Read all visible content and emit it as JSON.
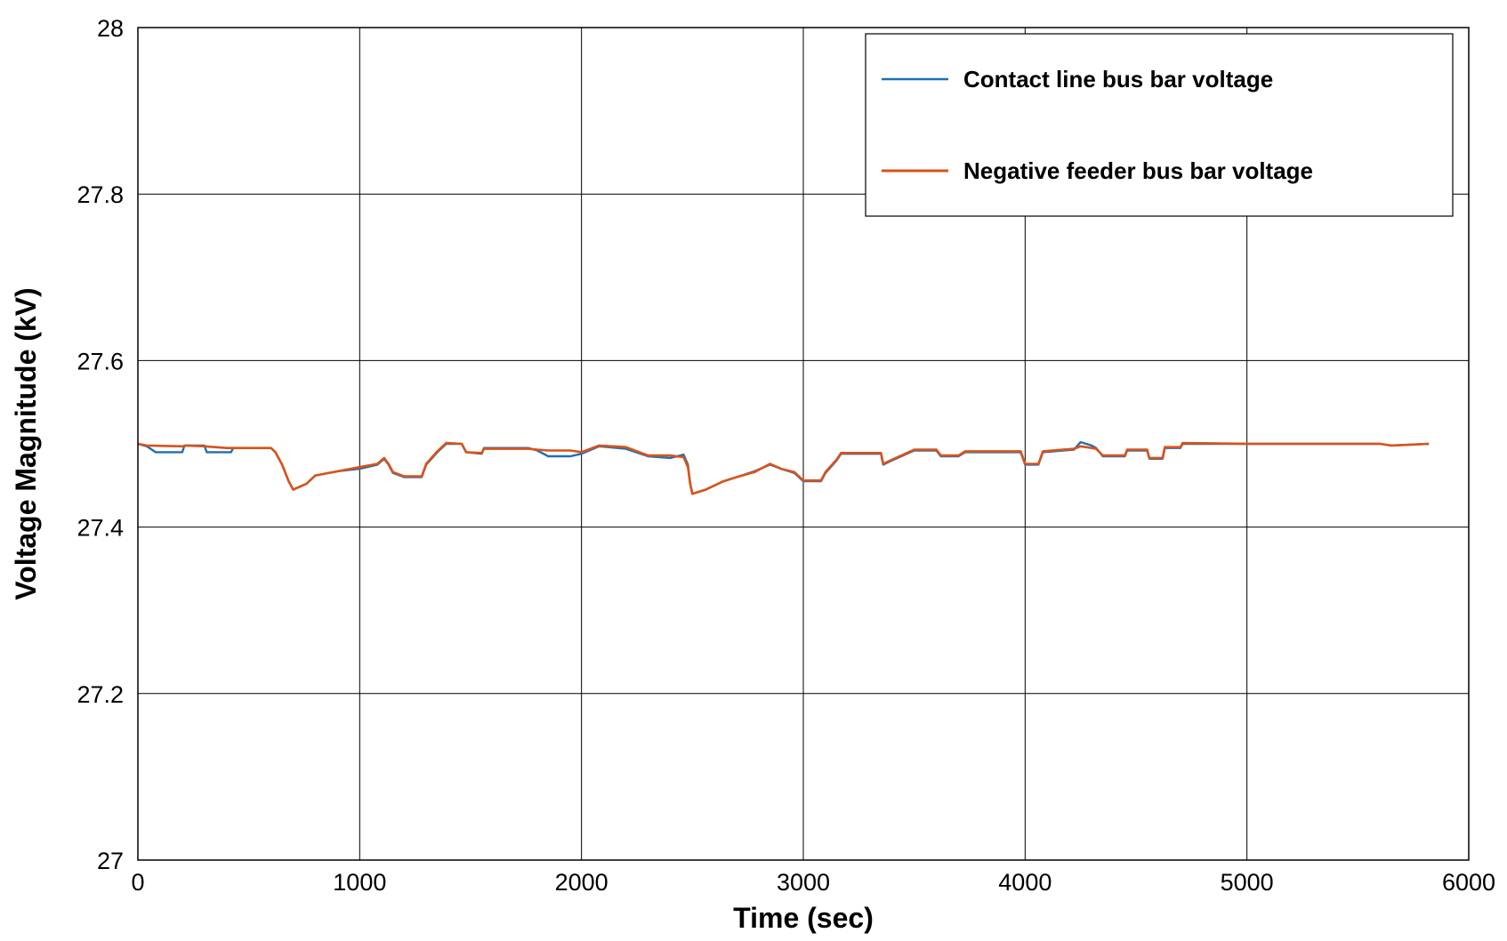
{
  "chart_data": {
    "type": "line",
    "title": "",
    "xlabel": "Time (sec)",
    "ylabel": "Voltage Magnitude (kV)",
    "xlim": [
      0,
      6000
    ],
    "ylim": [
      27,
      28
    ],
    "xticks": [
      0,
      1000,
      2000,
      3000,
      4000,
      5000,
      6000
    ],
    "xtick_labels": [
      "0",
      "1000",
      "2000",
      "3000",
      "4000",
      "5000",
      "6000"
    ],
    "yticks": [
      27,
      27.2,
      27.4,
      27.6,
      27.8,
      28
    ],
    "ytick_labels": [
      "27",
      "27.2",
      "27.4",
      "27.6",
      "27.8",
      "28"
    ],
    "grid": true,
    "legend_position": "top-right",
    "series": [
      {
        "name": "Contact line bus bar voltage",
        "color": "#1f6fb5",
        "points": [
          [
            0,
            27.5
          ],
          [
            40,
            27.497
          ],
          [
            80,
            27.49
          ],
          [
            200,
            27.49
          ],
          [
            210,
            27.498
          ],
          [
            300,
            27.498
          ],
          [
            310,
            27.49
          ],
          [
            420,
            27.49
          ],
          [
            430,
            27.495
          ],
          [
            600,
            27.495
          ],
          [
            620,
            27.49
          ],
          [
            650,
            27.475
          ],
          [
            680,
            27.455
          ],
          [
            700,
            27.445
          ],
          [
            760,
            27.452
          ],
          [
            800,
            27.462
          ],
          [
            900,
            27.467
          ],
          [
            1000,
            27.47
          ],
          [
            1080,
            27.475
          ],
          [
            1110,
            27.482
          ],
          [
            1130,
            27.475
          ],
          [
            1150,
            27.465
          ],
          [
            1200,
            27.46
          ],
          [
            1280,
            27.46
          ],
          [
            1300,
            27.475
          ],
          [
            1350,
            27.49
          ],
          [
            1390,
            27.5
          ],
          [
            1460,
            27.5
          ],
          [
            1480,
            27.49
          ],
          [
            1550,
            27.488
          ],
          [
            1560,
            27.495
          ],
          [
            1760,
            27.495
          ],
          [
            1800,
            27.492
          ],
          [
            1850,
            27.485
          ],
          [
            1950,
            27.485
          ],
          [
            2000,
            27.488
          ],
          [
            2080,
            27.497
          ],
          [
            2200,
            27.494
          ],
          [
            2300,
            27.485
          ],
          [
            2400,
            27.483
          ],
          [
            2460,
            27.487
          ],
          [
            2480,
            27.475
          ],
          [
            2490,
            27.452
          ],
          [
            2500,
            27.44
          ],
          [
            2560,
            27.445
          ],
          [
            2640,
            27.455
          ],
          [
            2700,
            27.46
          ],
          [
            2780,
            27.467
          ],
          [
            2850,
            27.475
          ],
          [
            2900,
            27.47
          ],
          [
            2960,
            27.465
          ],
          [
            3000,
            27.455
          ],
          [
            3080,
            27.455
          ],
          [
            3100,
            27.465
          ],
          [
            3150,
            27.48
          ],
          [
            3170,
            27.488
          ],
          [
            3350,
            27.488
          ],
          [
            3360,
            27.475
          ],
          [
            3400,
            27.48
          ],
          [
            3500,
            27.492
          ],
          [
            3600,
            27.492
          ],
          [
            3620,
            27.485
          ],
          [
            3700,
            27.485
          ],
          [
            3730,
            27.49
          ],
          [
            3980,
            27.49
          ],
          [
            4000,
            27.475
          ],
          [
            4060,
            27.475
          ],
          [
            4080,
            27.49
          ],
          [
            4220,
            27.493
          ],
          [
            4250,
            27.502
          ],
          [
            4300,
            27.498
          ],
          [
            4320,
            27.495
          ],
          [
            4350,
            27.485
          ],
          [
            4450,
            27.485
          ],
          [
            4460,
            27.492
          ],
          [
            4550,
            27.492
          ],
          [
            4560,
            27.482
          ],
          [
            4620,
            27.482
          ],
          [
            4630,
            27.495
          ],
          [
            4700,
            27.495
          ],
          [
            4710,
            27.5
          ],
          [
            5000,
            27.5
          ],
          [
            5600,
            27.5
          ],
          [
            5650,
            27.498
          ],
          [
            5820,
            27.5
          ]
        ]
      },
      {
        "name": "Negative feeder bus bar voltage",
        "color": "#d95319",
        "points": [
          [
            0,
            27.5
          ],
          [
            40,
            27.498
          ],
          [
            200,
            27.497
          ],
          [
            220,
            27.498
          ],
          [
            300,
            27.497
          ],
          [
            400,
            27.495
          ],
          [
            600,
            27.495
          ],
          [
            620,
            27.49
          ],
          [
            650,
            27.475
          ],
          [
            680,
            27.455
          ],
          [
            700,
            27.445
          ],
          [
            760,
            27.452
          ],
          [
            800,
            27.462
          ],
          [
            900,
            27.467
          ],
          [
            1000,
            27.472
          ],
          [
            1080,
            27.476
          ],
          [
            1110,
            27.483
          ],
          [
            1130,
            27.476
          ],
          [
            1150,
            27.466
          ],
          [
            1200,
            27.461
          ],
          [
            1280,
            27.461
          ],
          [
            1300,
            27.476
          ],
          [
            1350,
            27.491
          ],
          [
            1390,
            27.501
          ],
          [
            1460,
            27.5
          ],
          [
            1480,
            27.49
          ],
          [
            1550,
            27.489
          ],
          [
            1560,
            27.494
          ],
          [
            1760,
            27.494
          ],
          [
            1800,
            27.493
          ],
          [
            1850,
            27.492
          ],
          [
            1950,
            27.492
          ],
          [
            2000,
            27.49
          ],
          [
            2080,
            27.498
          ],
          [
            2200,
            27.496
          ],
          [
            2300,
            27.486
          ],
          [
            2400,
            27.486
          ],
          [
            2460,
            27.484
          ],
          [
            2480,
            27.472
          ],
          [
            2490,
            27.452
          ],
          [
            2500,
            27.44
          ],
          [
            2560,
            27.445
          ],
          [
            2640,
            27.455
          ],
          [
            2700,
            27.46
          ],
          [
            2780,
            27.466
          ],
          [
            2850,
            27.476
          ],
          [
            2900,
            27.47
          ],
          [
            2960,
            27.466
          ],
          [
            3000,
            27.456
          ],
          [
            3080,
            27.456
          ],
          [
            3100,
            27.466
          ],
          [
            3150,
            27.481
          ],
          [
            3170,
            27.489
          ],
          [
            3350,
            27.489
          ],
          [
            3360,
            27.476
          ],
          [
            3400,
            27.481
          ],
          [
            3500,
            27.493
          ],
          [
            3600,
            27.493
          ],
          [
            3620,
            27.486
          ],
          [
            3700,
            27.486
          ],
          [
            3730,
            27.491
          ],
          [
            3980,
            27.491
          ],
          [
            4000,
            27.476
          ],
          [
            4060,
            27.476
          ],
          [
            4080,
            27.491
          ],
          [
            4220,
            27.494
          ],
          [
            4250,
            27.497
          ],
          [
            4300,
            27.495
          ],
          [
            4320,
            27.494
          ],
          [
            4350,
            27.486
          ],
          [
            4450,
            27.486
          ],
          [
            4460,
            27.493
          ],
          [
            4550,
            27.493
          ],
          [
            4560,
            27.483
          ],
          [
            4620,
            27.483
          ],
          [
            4630,
            27.496
          ],
          [
            4700,
            27.496
          ],
          [
            4710,
            27.501
          ],
          [
            5000,
            27.5
          ],
          [
            5600,
            27.5
          ],
          [
            5650,
            27.498
          ],
          [
            5820,
            27.5
          ]
        ]
      }
    ]
  }
}
